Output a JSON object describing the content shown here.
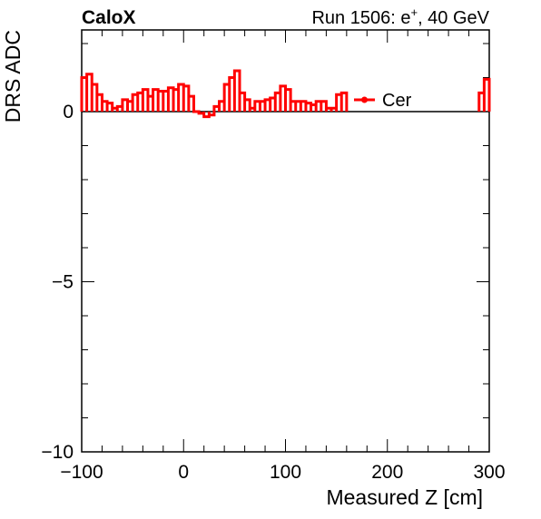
{
  "chart_data": {
    "type": "line",
    "title_left": "CaloX",
    "title_right": "Run 1506: e",
    "title_right_sup": "+",
    "title_right_tail": ", 40 GeV",
    "xlabel": "Measured Z [cm]",
    "ylabel": "DRS ADC",
    "xlim": [
      -100,
      300
    ],
    "ylim": [
      -10,
      2.4
    ],
    "xticks": [
      -100,
      0,
      100,
      200,
      300
    ],
    "xtick_labels": [
      "−100",
      "0",
      "100",
      "200",
      "300"
    ],
    "yticks": [
      -10,
      -5,
      0
    ],
    "ytick_labels": [
      "−10",
      "−5",
      "0"
    ],
    "legend": {
      "position": "top-right",
      "entries": [
        "Cer"
      ]
    },
    "series": [
      {
        "name": "Cer",
        "color": "#ff0000",
        "style": "histogram-step",
        "bin_width": 5,
        "segments": [
          {
            "x_start": -100,
            "values": [
              1.0,
              1.1,
              0.8,
              0.5,
              0.3,
              0.25,
              0.1,
              0.15,
              0.35,
              0.3,
              0.5,
              0.55,
              0.65,
              0.45,
              0.65,
              0.6,
              0.6,
              0.7,
              0.65,
              0.8,
              0.75,
              0.45,
              0.0,
              -0.05,
              -0.15,
              -0.1,
              0.15,
              0.3,
              0.8,
              1.0,
              1.2,
              0.55,
              0.35,
              0.1,
              0.3,
              0.3,
              0.35,
              0.4,
              0.55,
              0.75,
              0.65,
              0.3,
              0.3,
              0.3,
              0.25,
              0.2,
              0.3,
              0.3,
              0.1,
              0.1,
              0.5,
              0.55
            ]
          },
          {
            "x_start": 290,
            "values": [
              0.55,
              0.95
            ]
          }
        ]
      }
    ]
  }
}
